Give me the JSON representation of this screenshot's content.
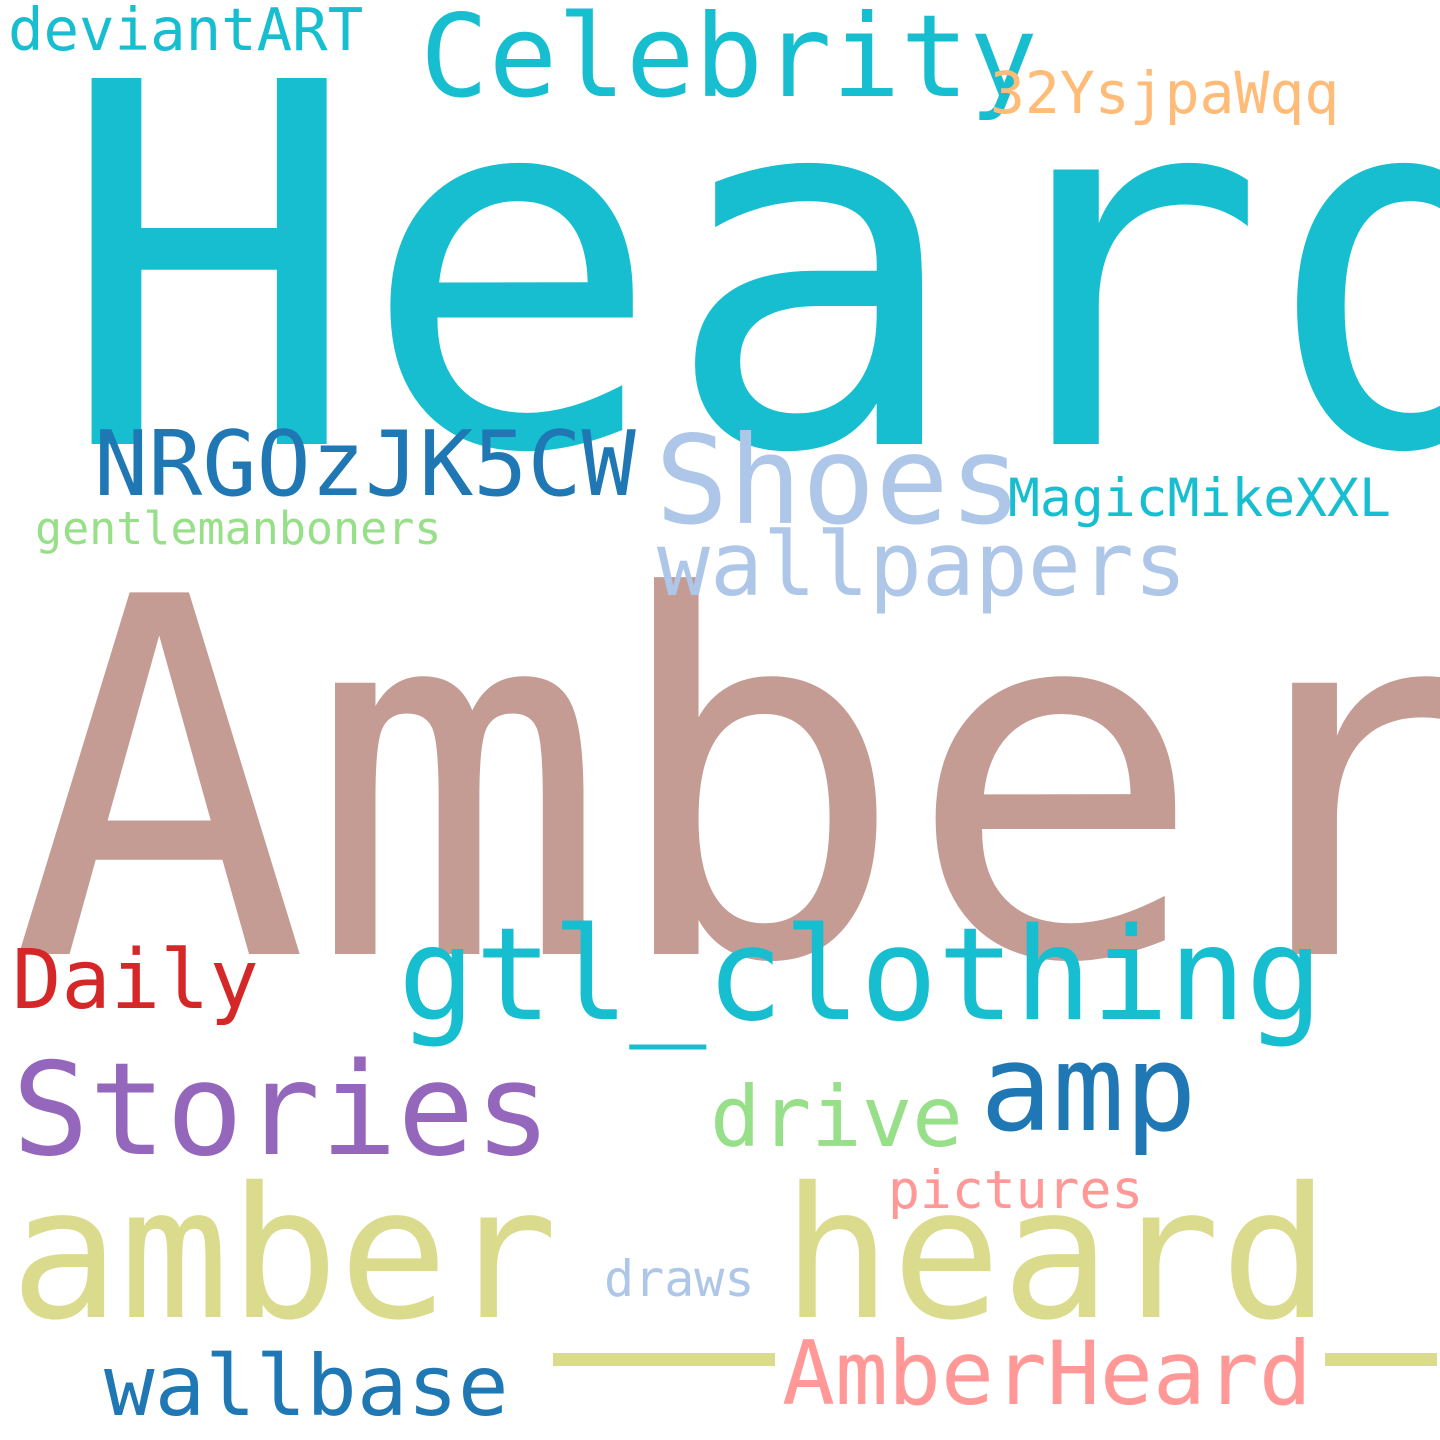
{
  "words": [
    {
      "text": "Heard",
      "color": "#17becf"
    },
    {
      "text": "Amber",
      "color": "#c49c94"
    },
    {
      "text": "amber",
      "color": "#dbdb8d"
    },
    {
      "text": "heard",
      "color": "#dbdb8d"
    },
    {
      "text": "Celebrity",
      "color": "#17becf"
    },
    {
      "text": "gtl_clothing",
      "color": "#17becf"
    },
    {
      "text": "Stories",
      "color": "#9467bd"
    },
    {
      "text": "Shoes",
      "color": "#aec7e8"
    },
    {
      "text": "wallpapers",
      "color": "#aec7e8"
    },
    {
      "text": "NRGOzJK5CW",
      "color": "#1f77b4"
    },
    {
      "text": "amp",
      "color": "#1f77b4"
    },
    {
      "text": "AmberHeard",
      "color": "#ff9896"
    },
    {
      "text": "wallbase",
      "color": "#1f77b4"
    },
    {
      "text": "drive",
      "color": "#98df8a"
    },
    {
      "text": "Daily",
      "color": "#d62728"
    },
    {
      "text": "32YsjpaWqq",
      "color": "#ffbb78"
    },
    {
      "text": "MagicMikeXXL",
      "color": "#17becf"
    },
    {
      "text": "gentlemanboners",
      "color": "#98df8a"
    },
    {
      "text": "deviantART",
      "color": "#17becf"
    },
    {
      "text": "pictures",
      "color": "#ff9896"
    },
    {
      "text": "draws",
      "color": "#aec7e8"
    }
  ],
  "dash_color": "#dbdb8d"
}
